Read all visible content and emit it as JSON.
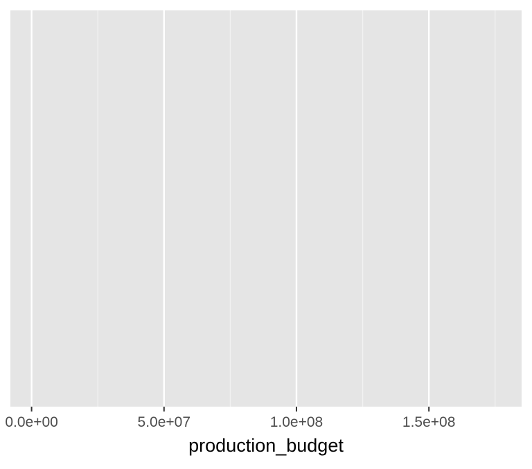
{
  "chart_data": {
    "type": "scatter",
    "title": "",
    "xlabel": "production_budget",
    "ylabel": "",
    "xlim": [
      -8000000,
      185000000
    ],
    "x_ticks": [
      {
        "value": 0,
        "label": "0.0e+00"
      },
      {
        "value": 50000000,
        "label": "5.0e+07"
      },
      {
        "value": 100000000,
        "label": "1.0e+08"
      },
      {
        "value": 150000000,
        "label": "1.5e+08"
      }
    ],
    "x_minor_grid": [
      25000000,
      75000000,
      125000000,
      175000000
    ],
    "y_ticks": [],
    "grid": true,
    "series": [],
    "colors": {
      "panel_background": "#e5e5e5",
      "grid_major": "#ffffff",
      "grid_minor": "#f2f2f2",
      "tick_text": "#4d4d4d",
      "tick_mark": "#333333",
      "axis_title": "#000000"
    }
  }
}
